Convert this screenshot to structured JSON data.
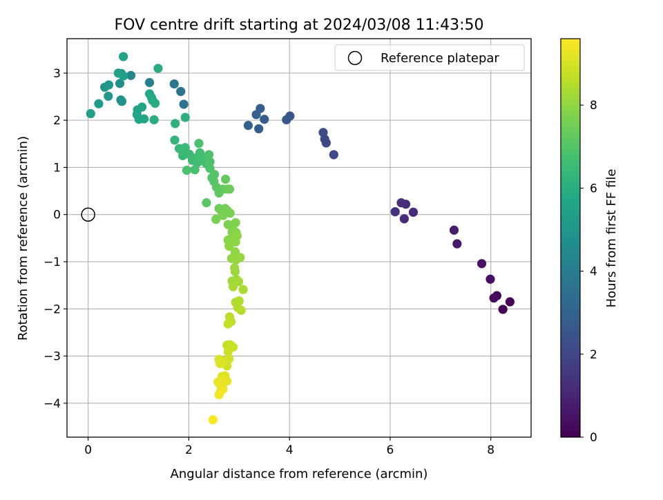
{
  "chart_data": {
    "type": "scatter",
    "title": "FOV centre drift starting at 2024/03/08 11:43:50",
    "xlabel": "Angular distance from reference (arcmin)",
    "ylabel": "Rotation from reference (arcmin)",
    "xlim": [
      -0.42,
      8.8
    ],
    "ylim": [
      -4.72,
      3.73
    ],
    "xticks": [
      0,
      2,
      4,
      6,
      8
    ],
    "yticks": [
      -4,
      -3,
      -2,
      -1,
      0,
      1,
      2,
      3
    ],
    "grid": true,
    "legend": {
      "placement": "top-right",
      "entries": [
        "Reference platepar"
      ]
    },
    "reference_point": {
      "x": 0,
      "y": 0
    },
    "colorbar": {
      "label": "Hours from first FF file",
      "colormap": "viridis",
      "range": [
        0,
        9.6
      ],
      "ticks": [
        0,
        2,
        4,
        6,
        8
      ]
    },
    "series": [
      {
        "points": [
          [
            8.24,
            -2.01,
            0.08
          ],
          [
            8.38,
            -1.85,
            0.15
          ],
          [
            8.12,
            -1.72,
            0.22
          ],
          [
            8.06,
            -1.77,
            0.3
          ],
          [
            7.99,
            -1.37,
            0.38
          ],
          [
            7.82,
            -1.04,
            0.5
          ],
          [
            7.33,
            -0.62,
            0.65
          ],
          [
            7.27,
            -0.33,
            0.72
          ],
          [
            6.46,
            0.05,
            1.15
          ],
          [
            6.28,
            -0.09,
            1.2
          ],
          [
            6.31,
            0.22,
            1.25
          ],
          [
            6.22,
            0.25,
            1.3
          ],
          [
            6.1,
            0.06,
            1.35
          ],
          [
            4.88,
            1.27,
            2.05
          ],
          [
            4.73,
            1.52,
            2.1
          ],
          [
            4.7,
            1.6,
            2.15
          ],
          [
            4.67,
            1.74,
            2.2
          ],
          [
            4.01,
            2.09,
            2.55
          ],
          [
            3.94,
            2.01,
            2.6
          ],
          [
            3.5,
            2.02,
            2.8
          ],
          [
            3.39,
            1.82,
            2.85
          ],
          [
            3.42,
            2.25,
            2.9
          ],
          [
            3.34,
            2.12,
            2.95
          ],
          [
            3.18,
            1.89,
            3.05
          ],
          [
            1.9,
            2.34,
            3.6
          ],
          [
            1.84,
            2.61,
            3.7
          ],
          [
            1.71,
            2.77,
            3.8
          ],
          [
            1.22,
            2.8,
            4.1
          ],
          [
            0.85,
            2.95,
            4.3
          ],
          [
            0.66,
            2.99,
            4.5
          ],
          [
            0.63,
            2.78,
            4.7
          ],
          [
            0.65,
            2.43,
            4.8
          ],
          [
            0.67,
            2.4,
            4.85
          ],
          [
            0.41,
            2.75,
            5.0
          ],
          [
            0.33,
            2.7,
            5.05
          ],
          [
            0.4,
            2.51,
            5.1
          ],
          [
            0.21,
            2.35,
            5.2
          ],
          [
            0.05,
            2.14,
            5.3
          ],
          [
            0.7,
            2.94,
            5.4
          ],
          [
            0.6,
            3.0,
            5.45
          ],
          [
            0.7,
            3.35,
            5.5
          ],
          [
            0.98,
            2.22,
            5.55
          ],
          [
            0.97,
            2.12,
            5.6
          ],
          [
            1.01,
            2.02,
            5.62
          ],
          [
            1.07,
            2.28,
            5.65
          ],
          [
            1.11,
            2.03,
            5.7
          ],
          [
            1.22,
            2.56,
            5.75
          ],
          [
            1.26,
            2.48,
            5.8
          ],
          [
            1.28,
            2.42,
            5.85
          ],
          [
            1.33,
            2.36,
            5.9
          ],
          [
            1.31,
            2.01,
            5.95
          ],
          [
            1.39,
            3.1,
            6.0
          ],
          [
            1.93,
            2.06,
            6.1
          ],
          [
            1.73,
            1.93,
            6.15
          ],
          [
            1.72,
            1.58,
            6.25
          ],
          [
            1.81,
            1.4,
            6.35
          ],
          [
            1.88,
            1.25,
            6.4
          ],
          [
            1.93,
            1.42,
            6.42
          ],
          [
            1.86,
            1.36,
            6.45
          ],
          [
            2.01,
            1.28,
            6.5
          ],
          [
            2.07,
            1.15,
            6.55
          ],
          [
            2.13,
            1.2,
            6.6
          ],
          [
            2.17,
            1.1,
            6.62
          ],
          [
            2.22,
            1.31,
            6.65
          ],
          [
            2.26,
            1.23,
            6.68
          ],
          [
            2.3,
            1.17,
            6.7
          ],
          [
            2.34,
            1.09,
            6.72
          ],
          [
            2.38,
            1.06,
            6.75
          ],
          [
            2.12,
            0.95,
            6.78
          ],
          [
            1.96,
            0.94,
            6.8
          ],
          [
            2.2,
            1.51,
            6.82
          ],
          [
            2.42,
            1.12,
            6.85
          ],
          [
            2.4,
            1.27,
            6.88
          ],
          [
            2.42,
            0.98,
            6.9
          ],
          [
            2.46,
            0.78,
            6.95
          ],
          [
            2.51,
            0.85,
            7.0
          ],
          [
            2.5,
            0.7,
            7.05
          ],
          [
            2.35,
            0.25,
            7.1
          ],
          [
            2.55,
            0.58,
            7.15
          ],
          [
            2.6,
            0.46,
            7.2
          ],
          [
            2.68,
            0.54,
            7.25
          ],
          [
            2.73,
            0.75,
            7.3
          ],
          [
            2.76,
            0.54,
            7.35
          ],
          [
            2.81,
            0.54,
            7.4
          ],
          [
            2.6,
            0.13,
            7.45
          ],
          [
            2.65,
            0.07,
            7.5
          ],
          [
            2.68,
            0.1,
            7.52
          ],
          [
            2.72,
            0.13,
            7.55
          ],
          [
            2.76,
            0.09,
            7.58
          ],
          [
            2.54,
            -0.1,
            7.6
          ],
          [
            2.68,
            -0.02,
            7.62
          ],
          [
            2.82,
            0.03,
            7.65
          ],
          [
            2.78,
            -0.21,
            7.7
          ],
          [
            2.86,
            -0.26,
            7.72
          ],
          [
            2.93,
            -0.17,
            7.75
          ],
          [
            2.86,
            -0.37,
            7.78
          ],
          [
            2.89,
            -0.34,
            7.8
          ],
          [
            2.91,
            -0.43,
            7.82
          ],
          [
            2.94,
            -0.38,
            7.84
          ],
          [
            2.78,
            -0.54,
            7.86
          ],
          [
            2.84,
            -0.52,
            7.88
          ],
          [
            2.88,
            -0.56,
            7.9
          ],
          [
            2.93,
            -0.58,
            7.92
          ],
          [
            2.96,
            -0.45,
            7.94
          ],
          [
            2.8,
            -0.67,
            7.96
          ],
          [
            2.92,
            -0.79,
            7.98
          ],
          [
            2.85,
            -0.93,
            8.02
          ],
          [
            2.94,
            -0.96,
            8.05
          ],
          [
            3.02,
            -0.91,
            8.08
          ],
          [
            2.91,
            -1.13,
            8.12
          ],
          [
            2.92,
            -1.21,
            8.16
          ],
          [
            2.95,
            -1.38,
            8.2
          ],
          [
            2.86,
            -1.41,
            8.24
          ],
          [
            2.99,
            -1.42,
            8.28
          ],
          [
            2.88,
            -1.53,
            8.32
          ],
          [
            3.08,
            -1.59,
            8.36
          ],
          [
            2.93,
            -1.86,
            8.4
          ],
          [
            2.97,
            -1.97,
            8.45
          ],
          [
            3.0,
            -1.83,
            8.5
          ],
          [
            3.04,
            -2.03,
            8.55
          ],
          [
            2.81,
            -2.17,
            8.6
          ],
          [
            2.84,
            -2.27,
            8.65
          ],
          [
            2.78,
            -2.32,
            8.7
          ],
          [
            2.76,
            -2.77,
            8.75
          ],
          [
            2.82,
            -2.76,
            8.78
          ],
          [
            2.88,
            -2.81,
            8.82
          ],
          [
            2.78,
            -2.91,
            8.86
          ],
          [
            2.8,
            -3.06,
            8.9
          ],
          [
            2.76,
            -3.21,
            8.94
          ],
          [
            2.72,
            -3.15,
            8.98
          ],
          [
            2.68,
            -3.1,
            9.02
          ],
          [
            2.6,
            -3.07,
            9.05
          ],
          [
            2.65,
            -3.12,
            9.08
          ],
          [
            2.62,
            -3.16,
            9.12
          ],
          [
            2.66,
            -3.43,
            9.15
          ],
          [
            2.72,
            -3.42,
            9.18
          ],
          [
            2.76,
            -3.53,
            9.2
          ],
          [
            2.7,
            -3.55,
            9.25
          ],
          [
            2.62,
            -3.6,
            9.3
          ],
          [
            2.58,
            -3.55,
            9.32
          ],
          [
            2.68,
            -3.7,
            9.35
          ],
          [
            2.63,
            -3.75,
            9.4
          ],
          [
            2.6,
            -3.82,
            9.45
          ],
          [
            2.48,
            -4.35,
            9.55
          ]
        ]
      }
    ]
  }
}
